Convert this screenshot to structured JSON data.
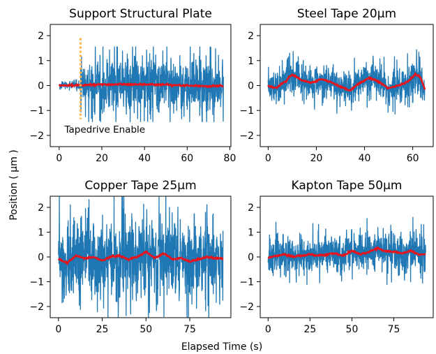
{
  "colors": {
    "noise": "#1f77b4",
    "trend": "#e8141c",
    "marker": "#ffb347",
    "axis": "#000000"
  },
  "figure": {
    "xlabel": "Elapsed Time (s)",
    "ylabel": "Position ( μm )"
  },
  "chart_data": [
    {
      "type": "line",
      "title": "Support Structural Plate",
      "xlim": [
        -4.2,
        80.5
      ],
      "ylim": [
        -2.45,
        2.45
      ],
      "xticks": [
        0,
        20,
        40,
        60,
        80
      ],
      "yticks": [
        -2,
        -1,
        0,
        1,
        2
      ],
      "grid": false,
      "series": [
        {
          "role": "raw",
          "x_range": [
            0,
            77
          ],
          "amplitude_before_marker": 0.09,
          "amplitude": 0.75,
          "peak_max": 1.55,
          "peak_min": -1.45
        },
        {
          "role": "smoothed",
          "x": [
            0,
            10,
            20,
            30,
            40,
            50,
            60,
            70,
            77
          ],
          "y": [
            0.0,
            0.02,
            0.04,
            0.05,
            0.05,
            0.03,
            0.0,
            -0.02,
            -0.02
          ]
        }
      ],
      "marker_line": {
        "x": 10,
        "y_range": [
          -1.35,
          1.9
        ],
        "style": "dotted",
        "label": "Tapedrive Enable",
        "label_pos": [
          2.5,
          -1.75
        ]
      }
    },
    {
      "type": "line",
      "title": "Steel Tape 20μm",
      "xlim": [
        -3.3,
        68.5
      ],
      "ylim": [
        -2.45,
        2.45
      ],
      "xticks": [
        0,
        20,
        40,
        60
      ],
      "yticks": [
        -2,
        -1,
        0,
        1,
        2
      ],
      "grid": false,
      "series": [
        {
          "role": "raw",
          "x_range": [
            0,
            65
          ],
          "amplitude": 0.42,
          "peak_max": 1.75,
          "peak_min": -1.55
        },
        {
          "role": "smoothed",
          "x": [
            0,
            3,
            7,
            10,
            14,
            18,
            22,
            26,
            30,
            34,
            38,
            42,
            46,
            50,
            54,
            58,
            61,
            63,
            65
          ],
          "y": [
            0.0,
            -0.1,
            0.15,
            0.45,
            0.2,
            0.1,
            0.25,
            0.15,
            -0.05,
            -0.2,
            0.1,
            0.3,
            0.15,
            -0.1,
            0.0,
            0.15,
            0.45,
            0.35,
            -0.15
          ]
        }
      ]
    },
    {
      "type": "line",
      "title": "Copper Tape 25μm",
      "xlim": [
        -4.7,
        98.5
      ],
      "ylim": [
        -2.45,
        2.45
      ],
      "xticks": [
        0,
        25,
        50,
        75
      ],
      "yticks": [
        -2,
        -1,
        0,
        1,
        2
      ],
      "grid": false,
      "series": [
        {
          "role": "raw",
          "x_range": [
            0,
            94
          ],
          "amplitude": 1.05,
          "peak_max": 2.45,
          "peak_min": -2.45
        },
        {
          "role": "smoothed",
          "x": [
            0,
            5,
            10,
            15,
            20,
            25,
            30,
            35,
            40,
            45,
            50,
            55,
            60,
            65,
            70,
            75,
            80,
            85,
            90,
            94
          ],
          "y": [
            -0.1,
            -0.25,
            0.05,
            -0.05,
            0.0,
            -0.15,
            0.0,
            0.05,
            -0.1,
            0.0,
            0.2,
            -0.05,
            0.15,
            -0.1,
            -0.05,
            -0.2,
            -0.1,
            0.0,
            -0.05,
            -0.05
          ]
        }
      ]
    },
    {
      "type": "line",
      "title": "Kapton Tape 50μm",
      "xlim": [
        -4.7,
        98.5
      ],
      "ylim": [
        -2.45,
        2.45
      ],
      "xticks": [
        0,
        25,
        50,
        75
      ],
      "yticks": [
        -2,
        -1,
        0,
        1,
        2
      ],
      "grid": false,
      "series": [
        {
          "role": "raw",
          "x_range": [
            0,
            94
          ],
          "amplitude": 0.5,
          "peak_max": 2.45,
          "peak_min": -2.1
        },
        {
          "role": "smoothed",
          "x": [
            0,
            5,
            10,
            15,
            20,
            25,
            30,
            35,
            40,
            45,
            50,
            55,
            60,
            65,
            70,
            75,
            80,
            85,
            90,
            94
          ],
          "y": [
            -0.05,
            0.05,
            0.1,
            0.0,
            0.05,
            0.1,
            0.05,
            0.1,
            0.15,
            0.05,
            0.25,
            0.1,
            0.2,
            0.35,
            0.25,
            0.2,
            0.15,
            0.25,
            0.1,
            0.1
          ]
        }
      ]
    }
  ]
}
